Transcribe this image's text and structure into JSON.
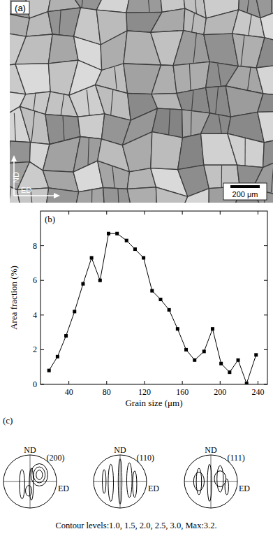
{
  "panel_a": {
    "label": "(a)",
    "y_axis": "ND",
    "x_axis": "ED",
    "scale_bar": "200 μm"
  },
  "chart_data": {
    "type": "line",
    "title": "(b)",
    "x_label": "Grain size (μm)",
    "y_label": "Area fraction (%)",
    "x": [
      19,
      28,
      37,
      46,
      55,
      64,
      73,
      82,
      91,
      101,
      110,
      119,
      128,
      137,
      146,
      155,
      164,
      173,
      183,
      192,
      201,
      210,
      219,
      228,
      238
    ],
    "values": [
      0.8,
      1.6,
      2.8,
      4.2,
      5.8,
      7.3,
      6.0,
      8.7,
      8.7,
      8.3,
      7.8,
      7.3,
      5.4,
      4.9,
      4.3,
      3.2,
      2.0,
      1.4,
      1.9,
      3.2,
      1.2,
      0.7,
      1.4,
      0.05,
      1.7
    ],
    "color": "#000000",
    "marker": "square",
    "line_style": "solid",
    "xlim": [
      10,
      250
    ],
    "xticks": [
      40,
      80,
      120,
      160,
      200,
      240
    ],
    "ylim": [
      0,
      10
    ],
    "yticks": [
      0,
      2,
      4,
      6,
      8
    ],
    "grid": false
  },
  "panel_c": {
    "label": "(c)",
    "pole_figures": [
      {
        "plane": "(200)",
        "north": "ND",
        "east": "ED"
      },
      {
        "plane": "(110)",
        "north": "ND",
        "east": "ED"
      },
      {
        "plane": "(111)",
        "north": "ND",
        "east": "ED"
      }
    ],
    "caption": "Contour levels:1.0, 1.5, 2.0, 2.5, 3.0, Max:3.2."
  }
}
